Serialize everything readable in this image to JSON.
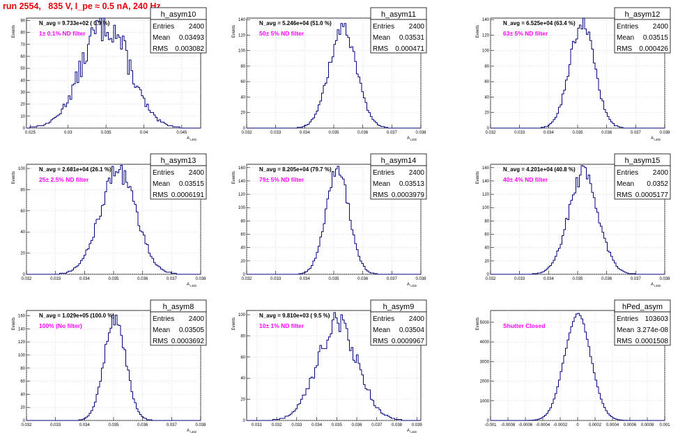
{
  "header": {
    "run_title": "run 2554,   835 V, I_pe ≈ 0.5 nA, 240 Hz"
  },
  "chart_data": [
    {
      "type": "histogram",
      "name": "h_asym10",
      "entries": "2400",
      "mean": "0.03493",
      "rms": "0.003082",
      "n_avg": "N_avg = 9.733e+02 ( 0.9 %)",
      "filter": "1± 0.1% ND filter",
      "ylabel": "Events",
      "xlabel": "A_LED",
      "xlim": [
        0.0245,
        0.0475
      ],
      "ylim": [
        0,
        92
      ],
      "xticks": [
        "0.025",
        "0.03",
        "0.035",
        "0.04",
        "0.045"
      ],
      "xtick_vals": [
        0.025,
        0.03,
        0.035,
        0.04,
        0.045
      ],
      "yticks": [
        0,
        10,
        20,
        30,
        40,
        50,
        60,
        70,
        80,
        90
      ],
      "grid": true,
      "model": {
        "mu": 0.03493,
        "sigma": 0.003082,
        "peak": 88,
        "noise": 0.18
      }
    },
    {
      "type": "histogram",
      "name": "h_asym11",
      "entries": "2400",
      "mean": "0.03531",
      "rms": "0.000471",
      "n_avg": "N_avg = 5.246e+04 (51.0 %)",
      "filter": "50± 5% ND filter",
      "ylabel": "Events",
      "xlabel": "A_LED",
      "xlim": [
        0.032,
        0.038
      ],
      "ylim": [
        0,
        142
      ],
      "xticks": [
        "0.032",
        "0.033",
        "0.034",
        "0.035",
        "0.036",
        "0.037",
        "0.038"
      ],
      "xtick_vals": [
        0.032,
        0.033,
        0.034,
        0.035,
        0.036,
        0.037,
        0.038
      ],
      "yticks": [
        0,
        20,
        40,
        60,
        80,
        100,
        120,
        140
      ],
      "grid": true,
      "model": {
        "mu": 0.03531,
        "sigma": 0.000471,
        "peak": 128,
        "noise": 0.08
      }
    },
    {
      "type": "histogram",
      "name": "h_asym12",
      "entries": "2400",
      "mean": "0.03515",
      "rms": "0.000426",
      "n_avg": "N_avg = 6.525e+04 (63.4 %)",
      "filter": "63± 5% ND filter",
      "ylabel": "Events",
      "xlabel": "A_LED",
      "xlim": [
        0.032,
        0.038
      ],
      "ylim": [
        0,
        142
      ],
      "xticks": [
        "0.032",
        "0.033",
        "0.034",
        "0.035",
        "0.036",
        "0.037",
        "0.038"
      ],
      "xtick_vals": [
        0.032,
        0.033,
        0.034,
        0.035,
        0.036,
        0.037,
        0.038
      ],
      "yticks": [
        0,
        20,
        40,
        60,
        80,
        100,
        120,
        140
      ],
      "grid": true,
      "model": {
        "mu": 0.03515,
        "sigma": 0.000426,
        "peak": 136,
        "noise": 0.08
      }
    },
    {
      "type": "histogram",
      "name": "h_asym13",
      "entries": "2400",
      "mean": "0.03515",
      "rms": "0.0006191",
      "n_avg": "N_avg = 2.681e+04 (26.1 %)",
      "filter": "25± 2.5% ND filter",
      "ylabel": "Events",
      "xlabel": "A_LED",
      "xlim": [
        0.032,
        0.038
      ],
      "ylim": [
        0,
        104
      ],
      "xticks": [
        "0.032",
        "0.033",
        "0.034",
        "0.035",
        "0.036",
        "0.037",
        "0.038"
      ],
      "xtick_vals": [
        0.032,
        0.033,
        0.034,
        0.035,
        0.036,
        0.037,
        0.038
      ],
      "yticks": [
        0,
        20,
        40,
        60,
        80,
        100
      ],
      "grid": true,
      "model": {
        "mu": 0.03515,
        "sigma": 0.0006191,
        "peak": 98,
        "noise": 0.1
      }
    },
    {
      "type": "histogram",
      "name": "h_asym14",
      "entries": "2400",
      "mean": "0.03513",
      "rms": "0.0003979",
      "n_avg": "N_avg = 8.205e+04 (79.7 %)",
      "filter": "79± 5% ND filter",
      "ylabel": "Events",
      "xlabel": "A_LED",
      "xlim": [
        0.032,
        0.038
      ],
      "ylim": [
        0,
        165
      ],
      "xticks": [
        "0.032",
        "0.033",
        "0.034",
        "0.035",
        "0.036",
        "0.037",
        "0.038"
      ],
      "xtick_vals": [
        0.032,
        0.033,
        0.034,
        0.035,
        0.036,
        0.037,
        0.038
      ],
      "yticks": [
        0,
        20,
        40,
        60,
        80,
        100,
        120,
        140,
        160
      ],
      "grid": true,
      "model": {
        "mu": 0.03513,
        "sigma": 0.0003979,
        "peak": 158,
        "noise": 0.07
      }
    },
    {
      "type": "histogram",
      "name": "h_asym15",
      "entries": "2400",
      "mean": "0.0352",
      "rms": "0.0005177",
      "n_avg": "N_avg = 4.201e+04 (40.8 %)",
      "filter": "40± 4% ND filter",
      "ylabel": "Events",
      "xlabel": "A_LED",
      "xlim": [
        0.032,
        0.038
      ],
      "ylim": [
        0,
        165
      ],
      "xticks": [
        "0.032",
        "0.033",
        "0.034",
        "0.035",
        "0.036",
        "0.037",
        "0.038"
      ],
      "xtick_vals": [
        0.032,
        0.033,
        0.034,
        0.035,
        0.036,
        0.037,
        0.038
      ],
      "yticks": [
        0,
        20,
        40,
        60,
        80,
        100,
        120,
        140,
        160
      ],
      "grid": true,
      "model": {
        "mu": 0.0352,
        "sigma": 0.0005177,
        "peak": 150,
        "noise": 0.1
      }
    },
    {
      "type": "histogram",
      "name": "h_asym8",
      "entries": "2400",
      "mean": "0.03505",
      "rms": "0.0003692",
      "n_avg": "N_avg = 1.029e+05 (100.0 %)",
      "filter": "100% (No filter)",
      "ylabel": "Events",
      "xlabel": "A_LED",
      "xlim": [
        0.032,
        0.038
      ],
      "ylim": [
        0,
        168
      ],
      "xticks": [
        "0.032",
        "0.033",
        "0.034",
        "0.035",
        "0.036",
        "0.037",
        "0.038"
      ],
      "xtick_vals": [
        0.032,
        0.033,
        0.034,
        0.035,
        0.036,
        0.037,
        0.038
      ],
      "yticks": [
        0,
        20,
        40,
        60,
        80,
        100,
        120,
        140,
        160
      ],
      "grid": true,
      "model": {
        "mu": 0.03505,
        "sigma": 0.0003692,
        "peak": 158,
        "noise": 0.08
      }
    },
    {
      "type": "histogram",
      "name": "h_asym9",
      "entries": "2400",
      "mean": "0.03504",
      "rms": "0.0009967",
      "n_avg": "N_avg = 9.810e+03 ( 9.5 %)",
      "filter": "10± 1% ND filter",
      "ylabel": "Events",
      "xlabel": "A_LED",
      "xlim": [
        0.0305,
        0.0392
      ],
      "ylim": [
        0,
        104
      ],
      "xticks": [
        "0.031",
        "0.032",
        "0.033",
        "0.034",
        "0.035",
        "0.036",
        "0.037",
        "0.038",
        "0.039"
      ],
      "xtick_vals": [
        0.031,
        0.032,
        0.033,
        0.034,
        0.035,
        0.036,
        0.037,
        0.038,
        0.039
      ],
      "yticks": [
        0,
        20,
        40,
        60,
        80,
        100
      ],
      "grid": true,
      "model": {
        "mu": 0.03504,
        "sigma": 0.0009967,
        "peak": 92,
        "noise": 0.14
      }
    },
    {
      "type": "histogram",
      "name": "hPed_asym",
      "entries": "103603",
      "mean": "3.274e-08",
      "rms": "0.0001508",
      "n_avg": "",
      "filter": "Shutter Closed",
      "ylabel": "Events",
      "xlabel": "",
      "xlim": [
        -0.001,
        0.001
      ],
      "ylim": [
        0,
        5600
      ],
      "xticks": [
        "-0.001",
        "-0.0008",
        "-0.0006",
        "-0.0004",
        "-0.0002",
        "0",
        "0.0002",
        "0.0004",
        "0.0006",
        "0.0008",
        "0.001"
      ],
      "xtick_vals": [
        -0.001,
        -0.0008,
        -0.0006,
        -0.0004,
        -0.0002,
        0,
        0.0002,
        0.0004,
        0.0006,
        0.0008,
        0.001
      ],
      "yticks": [
        0,
        1000,
        2000,
        3000,
        4000,
        5000
      ],
      "grid": true,
      "model": {
        "mu": 0.0,
        "sigma": 0.0001508,
        "peak": 5400,
        "noise": 0.02
      }
    }
  ],
  "stats_labels": {
    "entries": "Entries",
    "mean": "Mean",
    "rms": "RMS"
  },
  "colors": {
    "hist": "#00007f",
    "filter": "#ff00ff",
    "title": "#e8000b",
    "grid": "#c8c8c8"
  }
}
